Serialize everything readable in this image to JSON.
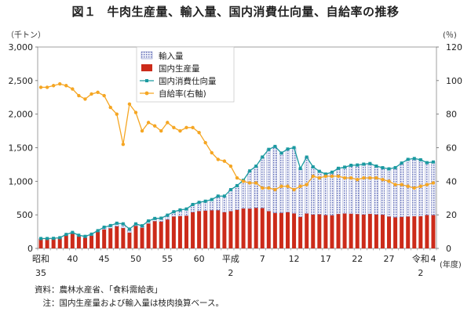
{
  "header": {
    "figure_no": "図１",
    "title": "牛肉生産量、輸入量、国内消費仕向量、自給率の推移"
  },
  "units": {
    "left": "（千トン）",
    "right": "(％)",
    "x": "(年度)"
  },
  "notes": {
    "source": "資料：農林水産省、「食料需給表」",
    "note": "　注：国内生産量および輸入量は枝肉換算ベース。"
  },
  "chart_data": {
    "type": "bar",
    "title": "牛肉生産量、輸入量、国内消費仕向量、自給率の推移",
    "ylabel": "（千トン）",
    "ylabel_right": "(％)",
    "xlabel": "(年度)",
    "ylim": [
      0,
      3000
    ],
    "ylim_right": [
      0,
      120
    ],
    "yticks": [
      "0",
      "500",
      "1,000",
      "1,500",
      "2,000",
      "2,500",
      "3,000"
    ],
    "yticks_right": [
      "0",
      "20",
      "40",
      "60",
      "80",
      "100",
      "120"
    ],
    "x_tick_labels": [
      {
        "index": 0,
        "line1": "昭和",
        "line2": "35"
      },
      {
        "index": 5,
        "line1": "40",
        "line2": ""
      },
      {
        "index": 10,
        "line1": "45",
        "line2": ""
      },
      {
        "index": 15,
        "line1": "50",
        "line2": ""
      },
      {
        "index": 20,
        "line1": "55",
        "line2": ""
      },
      {
        "index": 25,
        "line1": "60",
        "line2": ""
      },
      {
        "index": 30,
        "line1": "平成",
        "line2": "2"
      },
      {
        "index": 35,
        "line1": "7",
        "line2": ""
      },
      {
        "index": 40,
        "line1": "12",
        "line2": ""
      },
      {
        "index": 45,
        "line1": "17",
        "line2": ""
      },
      {
        "index": 50,
        "line1": "22",
        "line2": ""
      },
      {
        "index": 55,
        "line1": "27",
        "line2": ""
      },
      {
        "index": 60,
        "line1": "令和",
        "line2": "2"
      },
      {
        "index": 62,
        "line1": "4",
        "line2": ""
      }
    ],
    "legend_position": "top-center",
    "series": [
      {
        "name": "輸入量",
        "kind": "stacked-bar",
        "color": "#7b86c4",
        "values": [
          6,
          6,
          4,
          5,
          10,
          18,
          16,
          19,
          24,
          18,
          34,
          40,
          45,
          62,
          52,
          30,
          28,
          38,
          40,
          50,
          64,
          70,
          90,
          100,
          115,
          130,
          140,
          160,
          210,
          240,
          320,
          360,
          420,
          560,
          620,
          760,
          920,
          990,
          890,
          940,
          980,
          720,
          840,
          710,
          640,
          610,
          640,
          680,
          690,
          720,
          730,
          750,
          750,
          720,
          700,
          710,
          740,
          800,
          850,
          860,
          840,
          780,
          790
        ]
      },
      {
        "name": "国内生産量",
        "kind": "stacked-bar",
        "color": "#cc2b1a",
        "values": [
          141,
          141,
          146,
          154,
          198,
          220,
          180,
          160,
          188,
          246,
          282,
          300,
          330,
          304,
          236,
          335,
          309,
          371,
          406,
          400,
          431,
          476,
          483,
          487,
          539,
          556,
          563,
          568,
          569,
          539,
          555,
          575,
          595,
          594,
          605,
          601,
          555,
          529,
          530,
          540,
          521,
          470,
          520,
          505,
          508,
          497,
          495,
          513,
          520,
          518,
          512,
          505,
          514,
          506,
          502,
          475,
          463,
          471,
          476,
          479,
          480,
          497,
          497
        ]
      },
      {
        "name": "国内消費仕向量",
        "kind": "line",
        "color": "#1a9aa0",
        "values": [
          147,
          147,
          150,
          159,
          208,
          238,
          196,
          179,
          212,
          264,
          316,
          340,
          375,
          366,
          288,
          365,
          337,
          409,
          446,
          450,
          495,
          546,
          573,
          587,
          654,
          686,
          703,
          728,
          779,
          779,
          875,
          935,
          1015,
          1154,
          1225,
          1361,
          1475,
          1519,
          1420,
          1480,
          1501,
          1190,
          1360,
          1215,
          1148,
          1107,
          1135,
          1193,
          1210,
          1238,
          1242,
          1255,
          1264,
          1226,
          1202,
          1185,
          1203,
          1271,
          1326,
          1339,
          1320,
          1277,
          1287
        ]
      },
      {
        "name": "自給率(右軸)",
        "kind": "line",
        "axis": "right",
        "color": "#f5a623",
        "values": [
          96,
          96,
          97,
          98,
          97,
          95,
          91,
          89,
          92,
          93,
          91,
          84,
          80,
          62,
          86,
          81,
          70,
          75,
          73,
          70,
          75,
          72,
          70,
          72,
          72,
          69,
          63,
          57,
          53,
          52,
          49,
          42,
          40,
          39,
          39,
          36,
          36,
          35,
          37,
          37,
          35,
          37,
          38,
          43,
          42,
          43,
          43,
          43,
          42,
          42,
          41,
          42,
          42,
          42,
          41,
          40,
          38,
          38,
          37,
          36,
          37,
          38,
          39
        ]
      }
    ]
  }
}
